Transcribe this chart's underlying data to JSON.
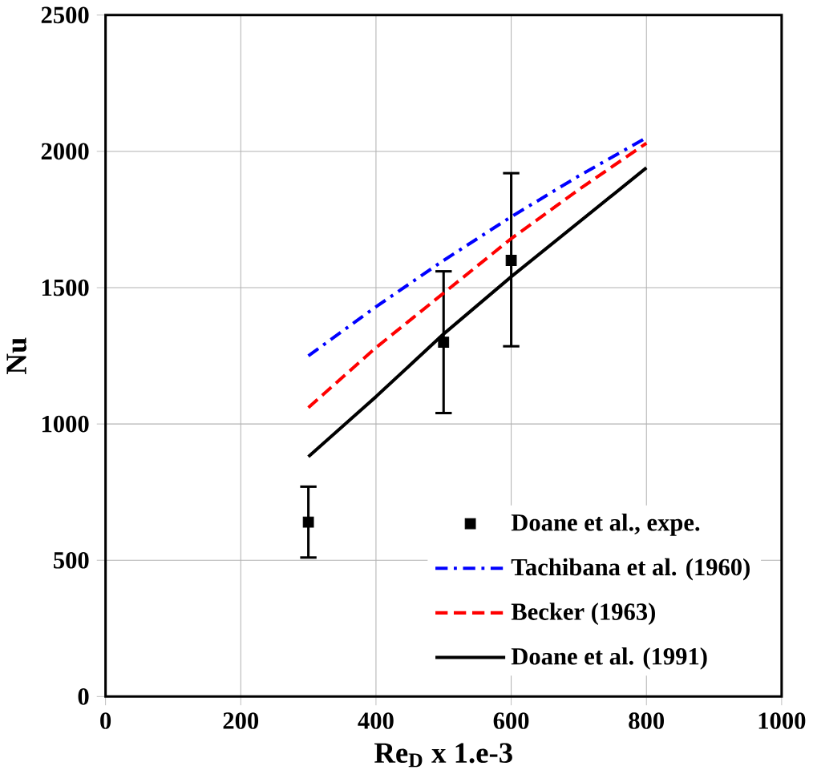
{
  "chart_data": {
    "type": "line",
    "xlabel": "Re$_{D}$ x 1.e-3",
    "ylabel": "Nu",
    "xlim": [
      0,
      1000
    ],
    "ylim": [
      0,
      2500
    ],
    "xticks": [
      0,
      200,
      400,
      600,
      800,
      1000
    ],
    "yticks": [
      0,
      500,
      1000,
      1500,
      2000,
      2500
    ],
    "grid": true,
    "legend": "bottom right",
    "series": [
      {
        "name": "Doane et al., expe.",
        "type": "scatter",
        "marker": "square",
        "color": "#000000",
        "x": [
          300,
          500,
          600
        ],
        "values": [
          640,
          1300,
          1600
        ],
        "errors": [
          [
            510,
            770
          ],
          [
            1040,
            1560
          ],
          [
            1285,
            1920
          ]
        ]
      },
      {
        "name": "Tachibana et al. (1960)",
        "line_style": "dashdot",
        "color": "#0000ff",
        "x": [
          300,
          400,
          500,
          600,
          700,
          800
        ],
        "values": [
          1250,
          1430,
          1600,
          1760,
          1910,
          2050
        ]
      },
      {
        "name": "Becker (1963)",
        "line_style": "dashed",
        "color": "#ff0000",
        "x": [
          300,
          400,
          500,
          600,
          700,
          800
        ],
        "values": [
          1060,
          1280,
          1480,
          1680,
          1860,
          2030
        ]
      },
      {
        "name": "Doane et al. (1991)",
        "line_style": "solid",
        "color": "#000000",
        "x": [
          300,
          400,
          500,
          600,
          700,
          800
        ],
        "values": [
          880,
          1100,
          1330,
          1540,
          1740,
          1940
        ]
      }
    ]
  }
}
